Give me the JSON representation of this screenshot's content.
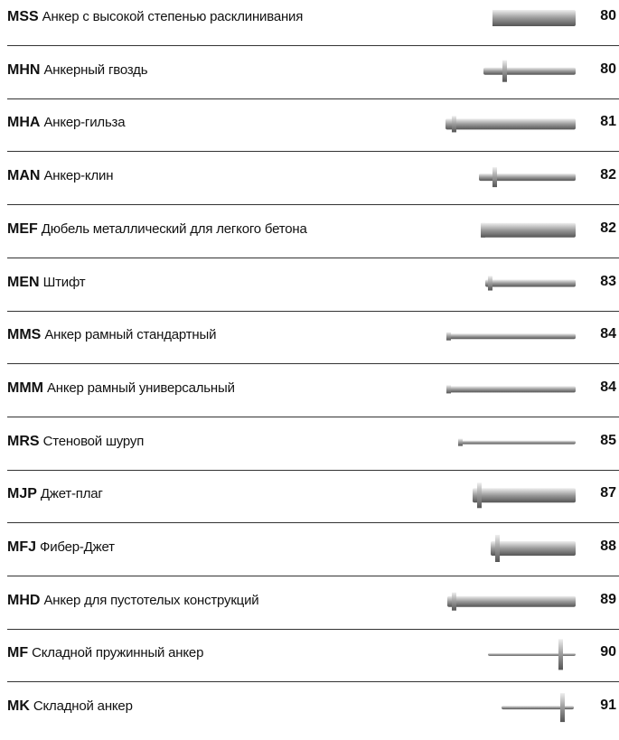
{
  "items": [
    {
      "code": "MSS",
      "name": "Анкер с высокой степенью расклинивания",
      "page": 80
    },
    {
      "code": "MHN",
      "name": "Анкерный гвоздь",
      "page": 80
    },
    {
      "code": "MHA",
      "name": "Анкер-гильза",
      "page": 81
    },
    {
      "code": "MAN",
      "name": "Анкер-клин",
      "page": 82
    },
    {
      "code": "MEF",
      "name": "Дюбель металлический для легкого бетона",
      "page": 82
    },
    {
      "code": "MEN",
      "name": "Штифт",
      "page": 83
    },
    {
      "code": "MMS",
      "name": "Анкер рамный стандартный",
      "page": 84
    },
    {
      "code": "MMM",
      "name": "Анкер рамный универсальный",
      "page": 84
    },
    {
      "code": "MRS",
      "name": "Стеновой шуруп",
      "page": 85
    },
    {
      "code": "MJP",
      "name": "Джет-плаг",
      "page": 87
    },
    {
      "code": "MFJ",
      "name": "Фибер-Джет",
      "page": 88
    },
    {
      "code": "MHD",
      "name": "Анкер для пустотелых конструкций",
      "page": 89
    },
    {
      "code": "MF",
      "name": "Складной пружинный анкер",
      "page": 90
    },
    {
      "code": "MK",
      "name": "Складной анкер",
      "page": 91
    }
  ]
}
